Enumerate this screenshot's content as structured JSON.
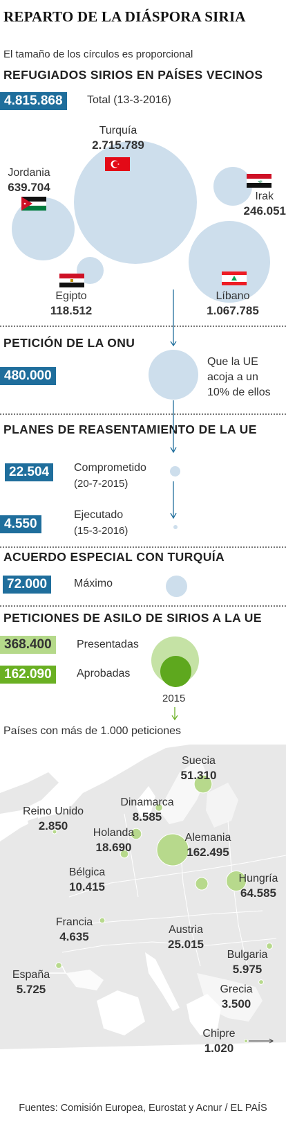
{
  "title": "REPARTO DE LA DIÁSPORA SIRIA",
  "subtitle": "El tamaño de los círculos es proporcional",
  "neighbors": {
    "heading": "REFUGIADOS SIRIOS EN PAÍSES VECINOS",
    "total_value": "4.815.868",
    "total_label": "Total (13-3-2016)",
    "countries": [
      {
        "name": "Turquía",
        "value": "2.715.789"
      },
      {
        "name": "Jordania",
        "value": "639.704"
      },
      {
        "name": "Irak",
        "value": "246.051"
      },
      {
        "name": "Egipto",
        "value": "118.512"
      },
      {
        "name": "Líbano",
        "value": "1.067.785"
      }
    ]
  },
  "onu": {
    "heading": "PETICIÓN DE LA ONU",
    "value": "480.000",
    "text_1": "Que la UE",
    "text_2": "acoja a un",
    "text_3": "10% de ellos"
  },
  "plans": {
    "heading": "PLANES DE REASENTAMIENTO DE LA UE",
    "committed_value": "22.504",
    "committed_label": "Comprometido",
    "committed_date": "(20-7-2015)",
    "executed_value": "4.550",
    "executed_label": "Ejecutado",
    "executed_date": "(15-3-2016)"
  },
  "turkey": {
    "heading": "ACUERDO ESPECIAL CON TURQUÍA",
    "value": "72.000",
    "label": "Máximo"
  },
  "asylum": {
    "heading": "PETICIONES DE ASILO DE SIRIOS A LA UE",
    "presented_value": "368.400",
    "presented_label": "Presentadas",
    "approved_value": "162.090",
    "approved_label": "Aprobadas",
    "year": "2015",
    "map_title": "Países con más de 1.000 peticiones"
  },
  "colors": {
    "blue_box": "#1f6e9c",
    "circle": "#cddeec",
    "presented": "#b5d98a",
    "approved": "#6ab023",
    "map_land": "#e6e6e6",
    "map_bubble": "#b7d98c"
  },
  "source": "Fuentes: Comisión Europea, Eurostat y Acnur / EL PAÍS",
  "chart_data": [
    {
      "type": "bubble",
      "title": "REFUGIADOS SIRIOS EN PAÍSES VECINOS",
      "categories": [
        "Turquía",
        "Jordania",
        "Irak",
        "Egipto",
        "Líbano"
      ],
      "values": [
        2715789,
        639704,
        246051,
        118512,
        1067785
      ]
    },
    {
      "type": "bubble",
      "title": "PETICIONES DE ASILO DE SIRIOS A LA UE",
      "categories": [
        "Suecia",
        "Dinamarca",
        "Reino Unido",
        "Holanda",
        "Alemania",
        "Bélgica",
        "Hungría",
        "Francia",
        "Austria",
        "Bulgaria",
        "España",
        "Grecia",
        "Chipre"
      ],
      "values": [
        51310,
        8585,
        2850,
        18690,
        162495,
        10415,
        64585,
        4635,
        25015,
        5975,
        5725,
        3500,
        1020
      ],
      "labels": [
        "51.310",
        "8.585",
        "2.850",
        "18.690",
        "162.495",
        "10.415",
        "64.585",
        "4.635",
        "25.015",
        "5.975",
        "5.725",
        "3.500",
        "1.020"
      ]
    }
  ]
}
